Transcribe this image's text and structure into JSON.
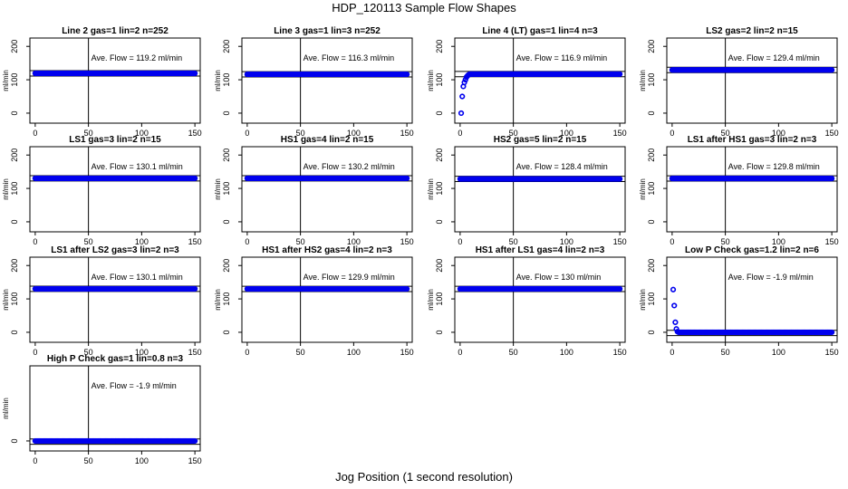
{
  "title": "HDP_120113  Sample Flow Shapes",
  "xlabel": "Jog Position (1 second resolution)",
  "chart_data": [
    {
      "type": "scatter",
      "title": "Line 2 gas=1 lin=2 n=252",
      "ylabel": "ml/min",
      "annotation": "Ave. Flow =  119.2  ml/min",
      "avg": 119.2,
      "xlim": [
        0,
        150
      ],
      "ylim": [
        0,
        200
      ],
      "xticks": [
        0,
        50,
        100,
        150
      ],
      "yticks": [
        0,
        100,
        200
      ],
      "vline": 50,
      "x": [
        0,
        150
      ],
      "y": [
        119.2,
        119.2
      ],
      "series": [
        {
          "shape": "flat",
          "value": 119.2
        }
      ]
    },
    {
      "type": "scatter",
      "title": "Line 3 gas=1 lin=3 n=252",
      "ylabel": "ml/min",
      "annotation": "Ave. Flow =  116.3  ml/min",
      "avg": 116.3,
      "xlim": [
        0,
        150
      ],
      "ylim": [
        0,
        200
      ],
      "xticks": [
        0,
        50,
        100,
        150
      ],
      "yticks": [
        0,
        100,
        200
      ],
      "vline": 50,
      "x": [
        0,
        150
      ],
      "y": [
        116.3,
        116.3
      ],
      "series": [
        {
          "shape": "flat",
          "value": 116.3
        }
      ]
    },
    {
      "type": "scatter",
      "title": "Line 4 (LT) gas=1 lin=4 n=3",
      "ylabel": "ml/min",
      "annotation": "Ave. Flow =  116.9  ml/min",
      "avg": 116.9,
      "xlim": [
        0,
        150
      ],
      "ylim": [
        0,
        200
      ],
      "xticks": [
        0,
        50,
        100,
        150
      ],
      "yticks": [
        0,
        100,
        200
      ],
      "vline": 50,
      "x": [
        1,
        2,
        3,
        4,
        5,
        6,
        7,
        8,
        150
      ],
      "y": [
        0,
        50,
        80,
        92,
        100,
        108,
        112,
        115,
        116.9
      ],
      "series": [
        {
          "shape": "rise",
          "value": 116.9
        }
      ]
    },
    {
      "type": "scatter",
      "title": "LS2 gas=2 lin=2 n=15",
      "ylabel": "ml/min",
      "annotation": "Ave. Flow =  129.4  ml/min",
      "avg": 129.4,
      "xlim": [
        0,
        150
      ],
      "ylim": [
        0,
        200
      ],
      "xticks": [
        0,
        50,
        100,
        150
      ],
      "yticks": [
        0,
        100,
        200
      ],
      "vline": 50,
      "x": [
        0,
        150
      ],
      "y": [
        129.4,
        129.4
      ],
      "series": [
        {
          "shape": "flat",
          "value": 129.4
        }
      ]
    },
    {
      "type": "scatter",
      "title": "LS1 gas=3 lin=2 n=15",
      "ylabel": "ml/min",
      "annotation": "Ave. Flow =  130.1  ml/min",
      "avg": 130.1,
      "xlim": [
        0,
        150
      ],
      "ylim": [
        0,
        200
      ],
      "xticks": [
        0,
        50,
        100,
        150
      ],
      "yticks": [
        0,
        100,
        200
      ],
      "vline": 50,
      "x": [
        0,
        150
      ],
      "y": [
        130.1,
        130.1
      ],
      "series": [
        {
          "shape": "flat",
          "value": 130.1
        }
      ]
    },
    {
      "type": "scatter",
      "title": "HS1 gas=4 lin=2 n=15",
      "ylabel": "ml/min",
      "annotation": "Ave. Flow =  130.2  ml/min",
      "avg": 130.2,
      "xlim": [
        0,
        150
      ],
      "ylim": [
        0,
        200
      ],
      "xticks": [
        0,
        50,
        100,
        150
      ],
      "yticks": [
        0,
        100,
        200
      ],
      "vline": 50,
      "x": [
        0,
        150
      ],
      "y": [
        130.2,
        130.2
      ],
      "series": [
        {
          "shape": "flat",
          "value": 130.2
        }
      ]
    },
    {
      "type": "scatter",
      "title": "HS2 gas=5 lin=2 n=15",
      "ylabel": "ml/min",
      "annotation": "Ave. Flow =  128.4  ml/min",
      "avg": 128.4,
      "xlim": [
        0,
        150
      ],
      "ylim": [
        0,
        200
      ],
      "xticks": [
        0,
        50,
        100,
        150
      ],
      "yticks": [
        0,
        100,
        200
      ],
      "vline": 50,
      "x": [
        0,
        150
      ],
      "y": [
        128.4,
        128.4
      ],
      "series": [
        {
          "shape": "flat",
          "value": 128.4
        }
      ]
    },
    {
      "type": "scatter",
      "title": "LS1 after HS1 gas=3 lin=2 n=3",
      "ylabel": "ml/min",
      "annotation": "Ave. Flow =  129.8  ml/min",
      "avg": 129.8,
      "xlim": [
        0,
        150
      ],
      "ylim": [
        0,
        200
      ],
      "xticks": [
        0,
        50,
        100,
        150
      ],
      "yticks": [
        0,
        100,
        200
      ],
      "vline": 50,
      "x": [
        0,
        150
      ],
      "y": [
        129.8,
        129.8
      ],
      "series": [
        {
          "shape": "flat",
          "value": 129.8
        }
      ]
    },
    {
      "type": "scatter",
      "title": "LS1 after LS2 gas=3 lin=2 n=3",
      "ylabel": "ml/min",
      "annotation": "Ave. Flow =  130.1  ml/min",
      "avg": 130.1,
      "xlim": [
        0,
        150
      ],
      "ylim": [
        0,
        200
      ],
      "xticks": [
        0,
        50,
        100,
        150
      ],
      "yticks": [
        0,
        100,
        200
      ],
      "vline": 50,
      "x": [
        0,
        150
      ],
      "y": [
        130.1,
        130.1
      ],
      "series": [
        {
          "shape": "flat",
          "value": 130.1
        }
      ]
    },
    {
      "type": "scatter",
      "title": "HS1 after HS2 gas=4 lin=2 n=3",
      "ylabel": "ml/min",
      "annotation": "Ave. Flow =  129.9  ml/min",
      "avg": 129.9,
      "xlim": [
        0,
        150
      ],
      "ylim": [
        0,
        200
      ],
      "xticks": [
        0,
        50,
        100,
        150
      ],
      "yticks": [
        0,
        100,
        200
      ],
      "vline": 50,
      "x": [
        0,
        150
      ],
      "y": [
        129.9,
        129.9
      ],
      "series": [
        {
          "shape": "flat",
          "value": 129.9
        }
      ]
    },
    {
      "type": "scatter",
      "title": "HS1 after LS1 gas=4 lin=2 n=3",
      "ylabel": "ml/min",
      "annotation": "Ave. Flow =  130  ml/min",
      "avg": 130,
      "xlim": [
        0,
        150
      ],
      "ylim": [
        0,
        200
      ],
      "xticks": [
        0,
        50,
        100,
        150
      ],
      "yticks": [
        0,
        100,
        200
      ],
      "vline": 50,
      "x": [
        0,
        150
      ],
      "y": [
        130,
        130
      ],
      "series": [
        {
          "shape": "flat",
          "value": 130
        }
      ]
    },
    {
      "type": "scatter",
      "title": "Low P Check gas=1.2 lin=2 n=6",
      "ylabel": "ml/min",
      "annotation": "Ave. Flow =  -1.9  ml/min",
      "avg": -1.9,
      "xlim": [
        0,
        150
      ],
      "ylim": [
        0,
        200
      ],
      "xticks": [
        0,
        50,
        100,
        150
      ],
      "yticks": [
        0,
        100,
        200
      ],
      "vline": 50,
      "x": [
        1,
        2,
        3,
        4,
        5,
        150
      ],
      "y": [
        128,
        80,
        30,
        10,
        2,
        0
      ],
      "series": [
        {
          "shape": "decay",
          "value": 0
        }
      ]
    },
    {
      "type": "scatter",
      "title": "High P Check gas=1 lin=0.8 n=3",
      "ylabel": "ml/min",
      "annotation": "Ave. Flow =  -1.9  ml/min",
      "avg": -1.9,
      "xlim": [
        0,
        150
      ],
      "ylim": [
        0,
        200
      ],
      "xticks": [
        0,
        50,
        100,
        150
      ],
      "yticks": [
        0
      ],
      "vline": 50,
      "x": [
        0,
        150
      ],
      "y": [
        0,
        0
      ],
      "series": [
        {
          "shape": "flat",
          "value": 0
        }
      ]
    }
  ]
}
